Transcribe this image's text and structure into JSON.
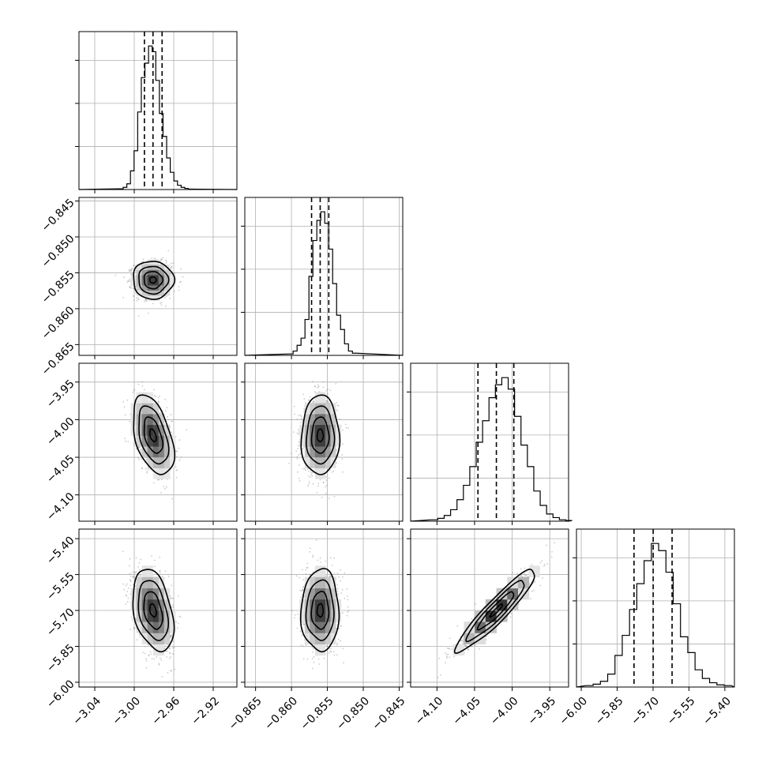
{
  "chart_data": {
    "type": "corner",
    "grid": true,
    "parameters": [
      {
        "range": [
          -3.056,
          -2.896
        ],
        "ticks": [
          -3.04,
          -3.0,
          -2.96,
          -2.92
        ],
        "tick_labels": [
          "−3.04",
          "−3.00",
          "−2.96",
          "−2.92"
        ],
        "quantiles": [
          -2.9897,
          -2.981,
          -2.9718
        ],
        "mean": -2.981,
        "sd": 0.0094,
        "hist": [
          0.5,
          1.5,
          4,
          13,
          27,
          54,
          78,
          88,
          100,
          96,
          76,
          53,
          37,
          22,
          12,
          6,
          3,
          1.5,
          0.8,
          0.3
        ],
        "y_ticks_hist": [
          30,
          60,
          90
        ]
      },
      {
        "range": [
          -0.8665,
          -0.8445
        ],
        "ticks": [
          -0.865,
          -0.86,
          -0.855,
          -0.85,
          -0.845
        ],
        "tick_labels": [
          "−0.865",
          "−0.860",
          "−0.855",
          "−0.850",
          "−0.845"
        ],
        "quantiles": [
          -0.8572,
          -0.856,
          -0.8548
        ],
        "mean": -0.856,
        "sd": 0.0012,
        "hist": [
          1,
          3,
          7,
          12,
          25,
          55,
          80,
          94,
          100,
          92,
          74,
          50,
          28,
          18,
          8,
          3,
          1.5
        ],
        "y_ticks_hist": [
          30,
          60,
          90
        ]
      },
      {
        "range": [
          -4.135,
          -3.925
        ],
        "ticks": [
          -4.1,
          -4.05,
          -4.0,
          -3.95
        ],
        "tick_labels": [
          "−4.10",
          "−4.05",
          "−4.00",
          "−3.95"
        ],
        "quantiles": [
          -4.0455,
          -4.021,
          -3.9978
        ],
        "mean": -4.021,
        "sd": 0.024,
        "hist": [
          1,
          2,
          4,
          8,
          15,
          25,
          38,
          55,
          70,
          86,
          95,
          100,
          92,
          73,
          53,
          38,
          21,
          11,
          5,
          2.5,
          1,
          0.5
        ],
        "y_ticks_hist": [
          30,
          60,
          90
        ]
      },
      {
        "range": [
          -6.02,
          -5.36
        ],
        "ticks": [
          -6.0,
          -5.85,
          -5.7,
          -5.55,
          -5.4
        ],
        "tick_labels": [
          "−6.00",
          "−5.85",
          "−5.70",
          "−5.55",
          "−5.40"
        ],
        "quantiles": [
          -5.7795,
          -5.6995,
          -5.6205
        ],
        "mean": -5.7,
        "sd": 0.078,
        "hist": [
          1,
          2,
          4,
          9,
          22,
          36,
          54,
          72,
          88,
          100,
          95,
          80,
          58,
          35,
          24,
          12,
          6,
          3,
          1.5,
          1
        ],
        "y_ticks_hist": [
          30,
          60,
          90
        ]
      }
    ],
    "correlations": [
      {
        "i": 1,
        "j": 0,
        "rho": -0.02
      },
      {
        "i": 2,
        "j": 0,
        "rho": -0.45
      },
      {
        "i": 2,
        "j": 1,
        "rho": 0.02
      },
      {
        "i": 3,
        "j": 0,
        "rho": -0.35
      },
      {
        "i": 3,
        "j": 1,
        "rho": 0.02
      },
      {
        "i": 3,
        "j": 2,
        "rho": 0.93
      }
    ]
  }
}
